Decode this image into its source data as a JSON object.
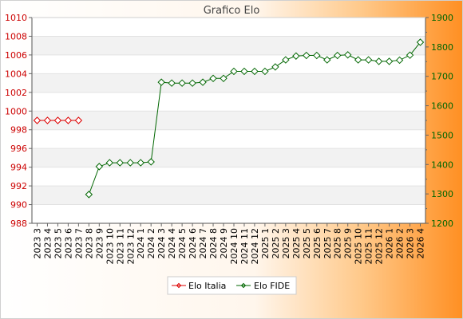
{
  "chart_data": {
    "type": "line",
    "title": "Grafico Elo",
    "categories": [
      "2023 3",
      "2023 4",
      "2023 5",
      "2023 6",
      "2023 7",
      "2023 8",
      "2023 9",
      "2023 10",
      "2023 11",
      "2023 12",
      "2024 1",
      "2024 2",
      "2024 3",
      "2024 4",
      "2024 5",
      "2024 6",
      "2024 7",
      "2024 8",
      "2024 9",
      "2024 10",
      "2024 11",
      "2024 12",
      "2025 1",
      "2025 2",
      "2025 3",
      "2025 4",
      "2025 5",
      "2025 6",
      "2025 7",
      "2025 8",
      "2025 9",
      "2025 10",
      "2025 11",
      "2025 12",
      "2026 1",
      "2026 2",
      "2026 3",
      "2026 4"
    ],
    "left_axis": {
      "color": "#cc0000",
      "ylim": [
        988,
        1010
      ],
      "ticks": [
        "988",
        "990",
        "992",
        "994",
        "996",
        "998",
        "1000",
        "1002",
        "1004",
        "1006",
        "1008",
        "1010"
      ]
    },
    "right_axis": {
      "color": "#006600",
      "ylim": [
        1200,
        1900
      ],
      "ticks": [
        "1200",
        "1300",
        "1400",
        "1500",
        "1600",
        "1700",
        "1800",
        "1900"
      ]
    },
    "series": [
      {
        "name": "Elo Italia",
        "axis": "left",
        "color": "#dd0000",
        "values": [
          999,
          999,
          999,
          999,
          999,
          null,
          null,
          null,
          null,
          null,
          null,
          null,
          null,
          null,
          null,
          null,
          null,
          null,
          null,
          null,
          null,
          null,
          null,
          null,
          null,
          null,
          null,
          null,
          null,
          null,
          null,
          null,
          null,
          null,
          null,
          null,
          null,
          null
        ]
      },
      {
        "name": "Elo FIDE",
        "axis": "right",
        "color": "#006600",
        "values": [
          null,
          null,
          null,
          null,
          null,
          1298,
          1393,
          1406,
          1406,
          1406,
          1406,
          1409,
          1680,
          1677,
          1677,
          1677,
          1680,
          1693,
          1693,
          1717,
          1717,
          1717,
          1717,
          1732,
          1756,
          1769,
          1771,
          1771,
          1756,
          1771,
          1773,
          1756,
          1756,
          1751,
          1751,
          1755,
          1772,
          1816
        ]
      }
    ],
    "grid": true,
    "legend_position": "bottom-center"
  }
}
